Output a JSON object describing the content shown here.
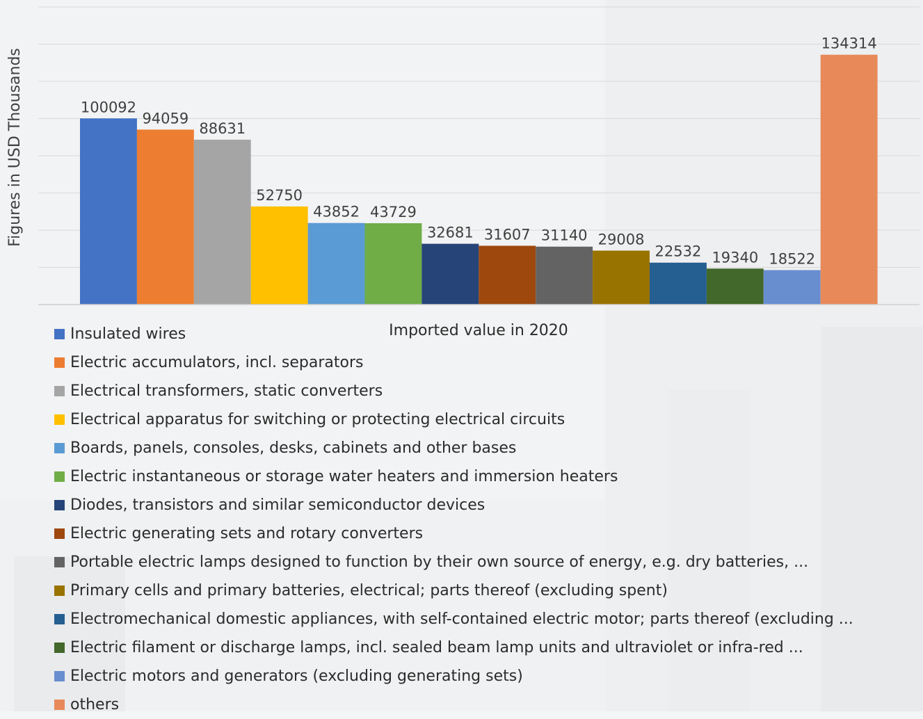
{
  "chart_data": {
    "type": "bar",
    "ylabel": "Figures in USD Thousands",
    "xlabel": "Imported value in 2020",
    "ylim": [
      0,
      160000
    ],
    "grid": true,
    "legend_position": "bottom-left",
    "series": [
      {
        "name": "Insulated wires",
        "value": 100092,
        "color": "#4472c4"
      },
      {
        "name": "Electric accumulators, incl. separators",
        "value": 94059,
        "color": "#ed7d31"
      },
      {
        "name": "Electrical transformers, static converters",
        "value": 88631,
        "color": "#a5a5a5"
      },
      {
        "name": "Electrical apparatus for switching or protecting electrical circuits",
        "value": 52750,
        "color": "#ffc000"
      },
      {
        "name": "Boards, panels, consoles, desks, cabinets and other bases",
        "value": 43852,
        "color": "#5b9bd5"
      },
      {
        "name": "Electric instantaneous or storage water heaters and immersion heaters",
        "value": 43729,
        "color": "#70ad47"
      },
      {
        "name": "Diodes, transistors and similar semiconductor devices",
        "value": 32681,
        "color": "#264478"
      },
      {
        "name": "Electric generating sets and rotary converters",
        "value": 31607,
        "color": "#9e480e"
      },
      {
        "name": "Portable electric lamps designed to function by their own source of energy, e.g. dry batteries, ...",
        "value": 31140,
        "color": "#636363"
      },
      {
        "name": "Primary cells and primary batteries, electrical; parts thereof (excluding spent)",
        "value": 29008,
        "color": "#997300"
      },
      {
        "name": "Electromechanical domestic appliances, with self-contained electric motor; parts thereof (excluding ...",
        "value": 22532,
        "color": "#255e91"
      },
      {
        "name": "Electric filament or discharge lamps, incl. sealed beam lamp units and ultraviolet or infra-red ...",
        "value": 19340,
        "color": "#43682b"
      },
      {
        "name": "Electric motors and generators (excluding generating sets)",
        "value": 18522,
        "color": "#698ed0"
      },
      {
        "name": "others",
        "value": 134314,
        "color": "#e8895a"
      }
    ]
  }
}
